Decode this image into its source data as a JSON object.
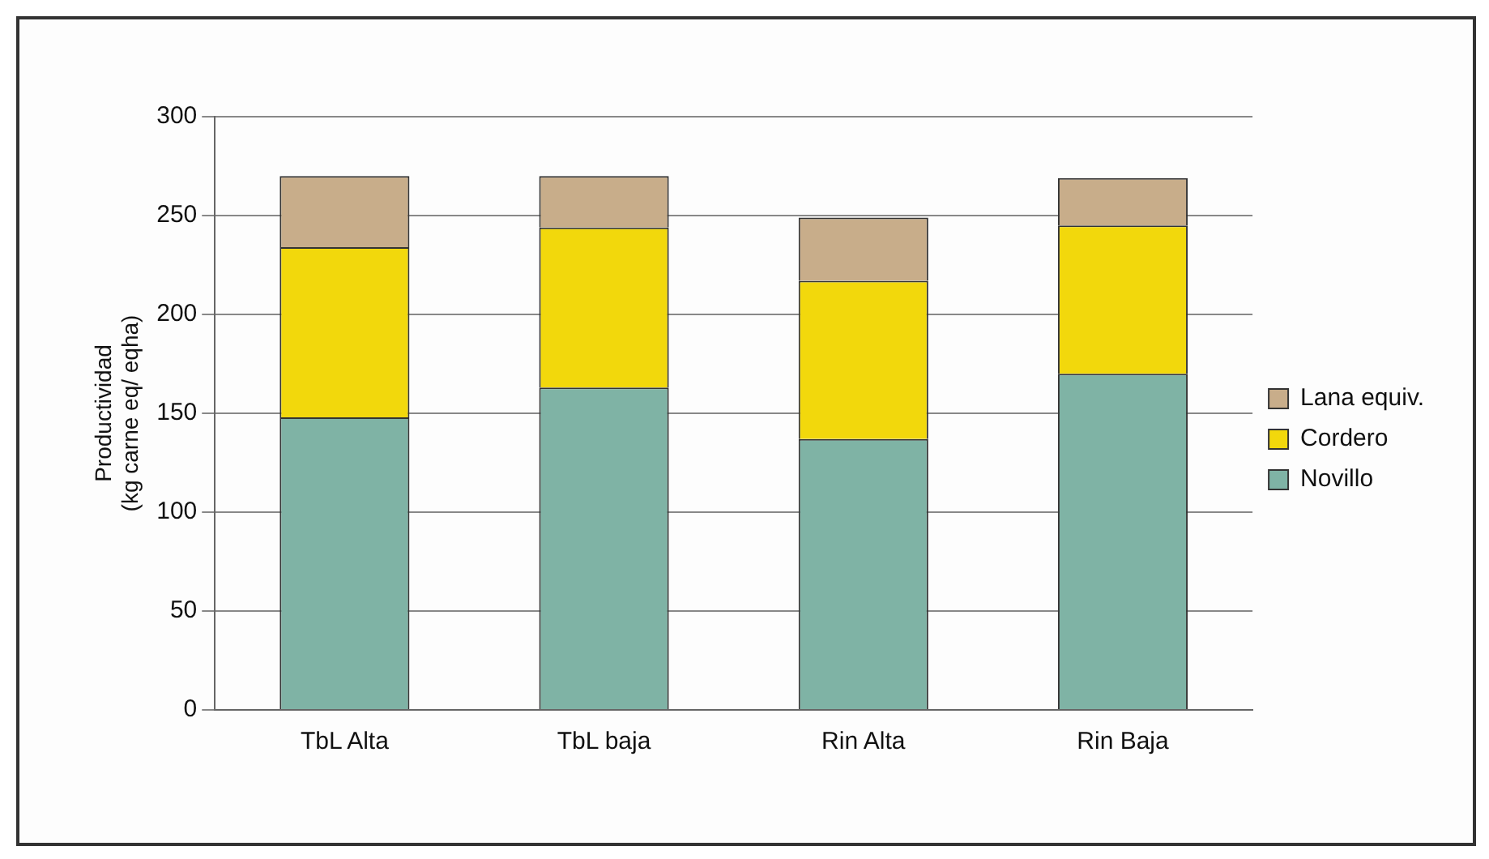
{
  "chart_data": {
    "type": "bar",
    "stacked": true,
    "ylabel": "Productividad\n(kg carne eq/ eqha)",
    "categories": [
      "TbL Alta",
      "TbL baja",
      "Rin Alta",
      "Rin Baja"
    ],
    "series": [
      {
        "name": "Novillo",
        "color": "#7fb3a5",
        "values": [
          148,
          163,
          137,
          170
        ]
      },
      {
        "name": "Cordero",
        "color": "#f2d80c",
        "values": [
          86,
          81,
          80,
          75
        ]
      },
      {
        "name": "Lana equiv.",
        "color": "#c8ad8a",
        "values": [
          36,
          26,
          32,
          24
        ]
      }
    ],
    "ylim": [
      0,
      300
    ],
    "yticks": [
      0,
      50,
      100,
      150,
      200,
      250,
      300
    ],
    "grid": "y",
    "legend": "right"
  }
}
